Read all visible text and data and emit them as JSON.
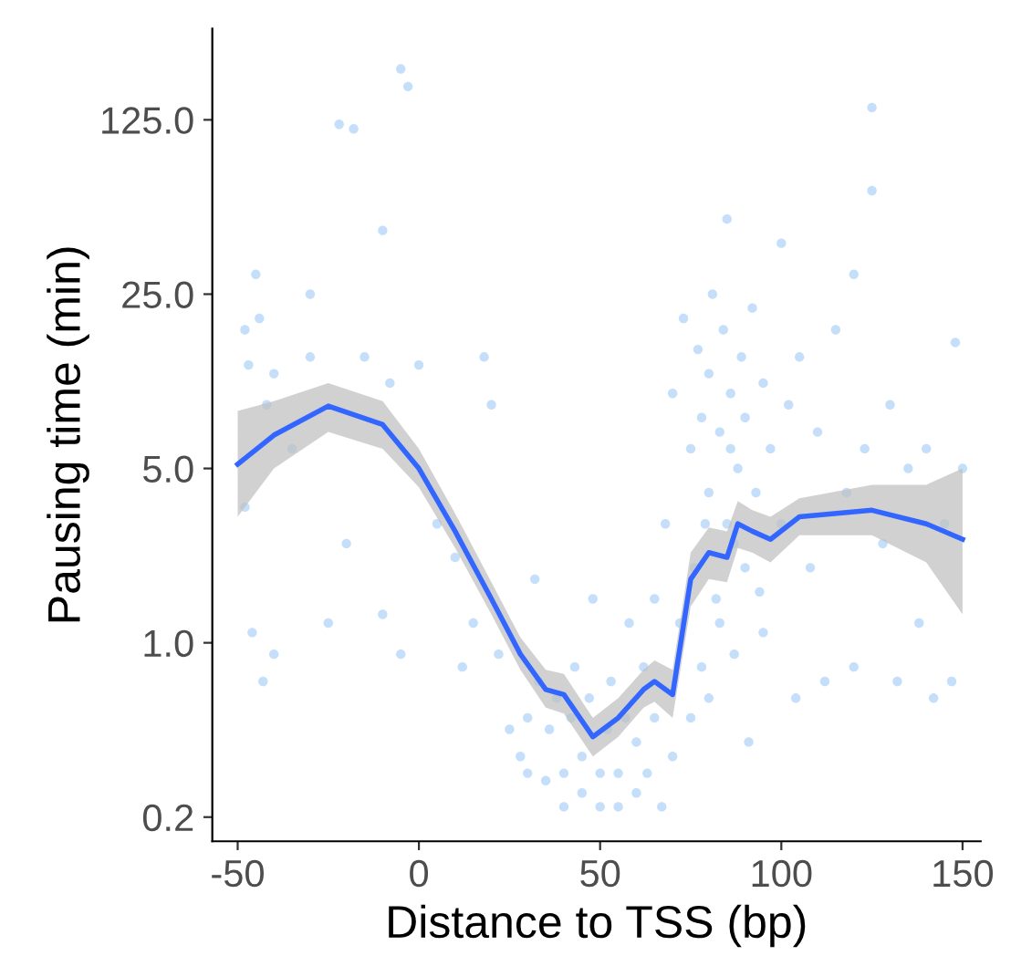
{
  "chart_data": {
    "type": "scatter",
    "xlabel": "Distance to TSS (bp)",
    "ylabel": "Pausing time (min)",
    "log": "y",
    "xlim": [
      -57,
      155
    ],
    "ylim": [
      0.16,
      290
    ],
    "xticks": [
      -50,
      0,
      50,
      100,
      150
    ],
    "yticks": [
      {
        "value": 0.2,
        "label": "0.2"
      },
      {
        "value": 1,
        "label": "1.0"
      },
      {
        "value": 5,
        "label": "5.0"
      },
      {
        "value": 25,
        "label": "25.0"
      },
      {
        "value": 125,
        "label": "125.0"
      }
    ],
    "grid": false,
    "series": [
      {
        "color": "#5aa3f0",
        "marker": "circle",
        "x": [
          -48,
          -47,
          -45,
          -44,
          -42,
          -40,
          -48,
          -46,
          -43,
          -40,
          -30,
          -22,
          -18,
          -10,
          -5,
          -3,
          -25,
          -20,
          -10,
          -5,
          -35,
          -30,
          -15,
          -8,
          0,
          5,
          10,
          12,
          15,
          18,
          20,
          22,
          25,
          28,
          30,
          30,
          32,
          33,
          35,
          36,
          38,
          40,
          40,
          42,
          43,
          45,
          45,
          47,
          48,
          50,
          50,
          52,
          53,
          55,
          55,
          57,
          58,
          60,
          60,
          62,
          63,
          65,
          65,
          67,
          68,
          70,
          70,
          72,
          73,
          75,
          75,
          76,
          77,
          78,
          78,
          80,
          80,
          80,
          81,
          82,
          83,
          84,
          85,
          85,
          86,
          87,
          88,
          89,
          90,
          90,
          91,
          92,
          93,
          95,
          95,
          97,
          100,
          100,
          102,
          104,
          105,
          108,
          110,
          112,
          115,
          118,
          120,
          120,
          123,
          125,
          125,
          128,
          130,
          132,
          135,
          138,
          140,
          142,
          145,
          147,
          148,
          150,
          87,
          86,
          83,
          79,
          94
        ],
        "values": [
          18,
          13,
          30,
          20,
          9,
          12,
          3.5,
          1.1,
          0.7,
          0.9,
          25,
          120,
          115,
          45,
          200,
          170,
          1.2,
          2.5,
          1.3,
          0.9,
          6,
          14,
          14,
          11,
          13,
          3,
          2.2,
          0.8,
          1.2,
          14,
          9,
          0.9,
          0.45,
          0.35,
          0.5,
          0.3,
          1.8,
          0.7,
          0.28,
          0.45,
          0.6,
          0.3,
          0.22,
          0.5,
          0.8,
          0.35,
          0.25,
          0.6,
          1.5,
          0.3,
          0.22,
          0.45,
          0.7,
          0.3,
          0.22,
          0.5,
          1.2,
          0.25,
          0.4,
          0.8,
          0.3,
          1.5,
          0.5,
          0.22,
          3,
          10,
          0.35,
          1.2,
          20,
          6,
          0.5,
          2,
          15,
          8,
          0.8,
          12,
          4,
          0.6,
          25,
          1.5,
          7,
          18,
          3,
          50,
          10,
          0.9,
          5,
          14,
          2,
          8,
          0.4,
          22,
          4,
          11,
          1.1,
          6,
          40,
          3,
          9,
          0.6,
          14,
          2,
          7,
          0.7,
          18,
          4,
          30,
          0.8,
          6,
          140,
          65,
          2.5,
          9,
          0.7,
          5,
          1.2,
          6,
          0.6,
          3,
          0.7,
          16,
          5,
          2.5,
          6,
          1.2,
          3,
          1.6
        ]
      },
      {
        "type": "line",
        "color": "#3366ff",
        "x": [
          -50,
          -40,
          -25,
          -10,
          0,
          10,
          20,
          28,
          35,
          40,
          48,
          55,
          62,
          65,
          70,
          75,
          80,
          85,
          88,
          92,
          97,
          105,
          125,
          140,
          150
        ],
        "values": [
          5.2,
          6.8,
          8.9,
          7.5,
          5,
          2.8,
          1.5,
          0.9,
          0.65,
          0.62,
          0.42,
          0.5,
          0.65,
          0.7,
          0.62,
          1.8,
          2.3,
          2.2,
          3.0,
          2.8,
          2.6,
          3.2,
          3.4,
          3.0,
          2.6
        ],
        "lower": [
          3.2,
          5.0,
          7.0,
          6.0,
          4.2,
          2.4,
          1.3,
          0.78,
          0.55,
          0.52,
          0.35,
          0.42,
          0.55,
          0.58,
          0.5,
          1.4,
          1.8,
          1.75,
          2.4,
          2.3,
          2.1,
          2.7,
          2.7,
          2.1,
          1.3
        ],
        "upper": [
          8.5,
          9.3,
          11.0,
          9.3,
          6.0,
          3.3,
          1.75,
          1.05,
          0.78,
          0.75,
          0.5,
          0.6,
          0.78,
          0.85,
          0.78,
          2.3,
          2.9,
          2.8,
          3.7,
          3.4,
          3.2,
          3.8,
          4.3,
          4.3,
          5.0
        ]
      }
    ]
  }
}
